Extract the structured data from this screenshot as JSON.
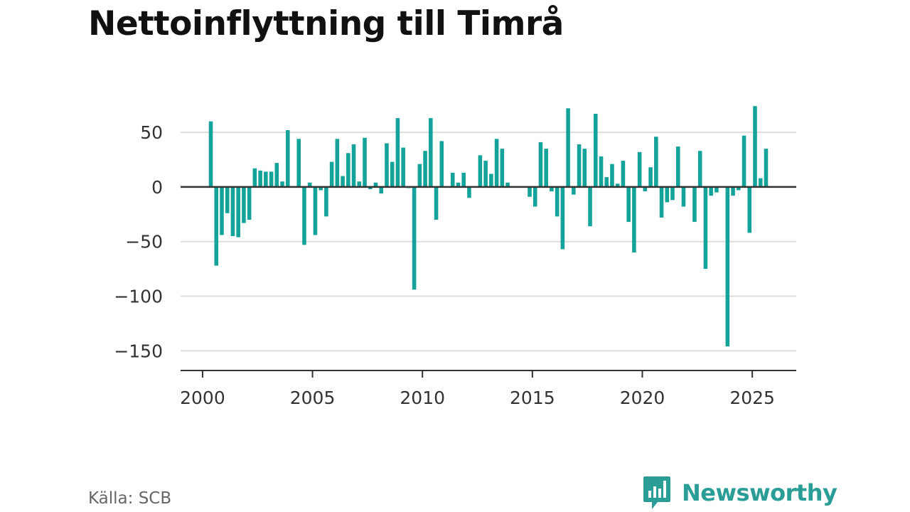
{
  "title": "Nettoinflyttning till Timrå",
  "source": "Källa: SCB",
  "brand": {
    "name": "Newsworthy",
    "icon": "newsworthy-logo-icon",
    "color": "#2a9d97"
  },
  "colors": {
    "bar": "#14a39a",
    "grid": "#dddddd",
    "axis": "#333333"
  },
  "chart_data": {
    "type": "bar",
    "title": "Nettoinflyttning till Timrå",
    "xlabel": "",
    "ylabel": "",
    "xlim": [
      1999.0,
      2027.0
    ],
    "ylim": [
      -168,
      80
    ],
    "xticks": [
      2000,
      2005,
      2010,
      2015,
      2020,
      2025
    ],
    "yticks": [
      50,
      0,
      -50,
      -100,
      -150
    ],
    "ytick_labels": [
      "50",
      "0",
      "−50",
      "−100",
      "−150"
    ],
    "grid": true,
    "x_start": 2000.375,
    "x_step": 0.25,
    "values": [
      60,
      -72,
      -44,
      -24,
      -45,
      -46,
      -33,
      -30,
      17,
      15,
      14,
      14,
      22,
      5,
      52,
      0,
      44,
      -53,
      4,
      -44,
      -3,
      -27,
      23,
      44,
      10,
      31,
      39,
      5,
      45,
      -2,
      4,
      -6,
      40,
      23,
      63,
      36,
      -1,
      -94,
      21,
      33,
      63,
      -30,
      42,
      0,
      13,
      4,
      13,
      -10,
      0,
      29,
      24,
      12,
      44,
      35,
      4,
      0,
      0,
      0,
      -9,
      -18,
      41,
      35,
      -4,
      -27,
      -57,
      72,
      -7,
      39,
      35,
      -36,
      67,
      28,
      9,
      21,
      3,
      24,
      -32,
      -60,
      32,
      -4,
      18,
      46,
      -28,
      -14,
      -12,
      37,
      -18,
      0,
      -32,
      33,
      -75,
      -8,
      -5,
      0,
      -146,
      -8,
      -3,
      47,
      -42,
      74,
      8,
      35
    ]
  }
}
